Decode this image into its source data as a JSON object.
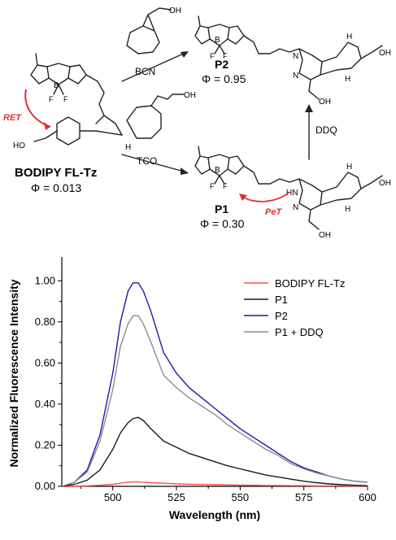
{
  "scheme": {
    "reactant_name": "BODIPY FL-Tz",
    "reactant_phi": "Φ = 0.013",
    "p2_name": "P2",
    "p2_phi": "Φ = 0.95",
    "p1_name": "P1",
    "p1_phi": "Φ = 0.30",
    "bcn_label": "BCN",
    "tco_label": "TCO",
    "ddq_label": "DDQ",
    "ret_label": "RET",
    "pet_label": "PeT",
    "oh": "OH",
    "ho": "HO",
    "boron": "B",
    "fluorine": "F",
    "nitrogen": "N",
    "hydrogen": "H",
    "nh": "HN"
  },
  "colors": {
    "bodipy_fl_tz": "#ff4d4d",
    "p1": "#1a1a1a",
    "p2": "#1a1ab0",
    "p1_ddq": "#8c8c8c",
    "annotation_red": "#e03030"
  },
  "chart_data": {
    "type": "line",
    "xlabel": "Wavelength (nm)",
    "ylabel": "Normalized Fluorescence Intensity",
    "xlim": [
      480,
      600
    ],
    "ylim": [
      0,
      1.1
    ],
    "x_ticks": [
      "500",
      "525",
      "550",
      "575",
      "600"
    ],
    "y_ticks": [
      "0.00",
      "0.20",
      "0.40",
      "0.60",
      "0.80",
      "1.00"
    ],
    "legend_position": "top-right",
    "x": [
      480,
      485,
      490,
      495,
      500,
      503,
      506,
      508,
      510,
      512,
      515,
      520,
      525,
      530,
      535,
      540,
      545,
      550,
      555,
      560,
      565,
      570,
      575,
      580,
      585,
      590,
      595,
      600
    ],
    "series": [
      {
        "name": "BODIPY FL-Tz",
        "values": [
          0.0,
          0.0,
          0.002,
          0.005,
          0.01,
          0.015,
          0.02,
          0.022,
          0.022,
          0.02,
          0.018,
          0.015,
          0.012,
          0.01,
          0.009,
          0.008,
          0.007,
          0.006,
          0.005,
          0.004,
          0.004,
          0.003,
          0.003,
          0.002,
          0.002,
          0.002,
          0.001,
          0.001
        ]
      },
      {
        "name": "P1",
        "values": [
          0.0,
          0.01,
          0.03,
          0.08,
          0.18,
          0.26,
          0.31,
          0.33,
          0.335,
          0.32,
          0.28,
          0.22,
          0.19,
          0.16,
          0.14,
          0.12,
          0.1,
          0.085,
          0.07,
          0.055,
          0.045,
          0.035,
          0.025,
          0.018,
          0.012,
          0.008,
          0.005,
          0.003
        ]
      },
      {
        "name": "P2",
        "values": [
          0.0,
          0.02,
          0.08,
          0.25,
          0.55,
          0.8,
          0.95,
          0.99,
          0.99,
          0.95,
          0.85,
          0.65,
          0.55,
          0.48,
          0.43,
          0.38,
          0.33,
          0.28,
          0.24,
          0.2,
          0.16,
          0.12,
          0.09,
          0.07,
          0.05,
          0.035,
          0.025,
          0.02
        ]
      },
      {
        "name": "P1 + DDQ",
        "values": [
          0.0,
          0.02,
          0.07,
          0.22,
          0.47,
          0.68,
          0.79,
          0.83,
          0.83,
          0.79,
          0.7,
          0.54,
          0.48,
          0.43,
          0.39,
          0.35,
          0.3,
          0.26,
          0.22,
          0.18,
          0.15,
          0.11,
          0.085,
          0.065,
          0.05,
          0.035,
          0.025,
          0.02
        ]
      }
    ]
  }
}
